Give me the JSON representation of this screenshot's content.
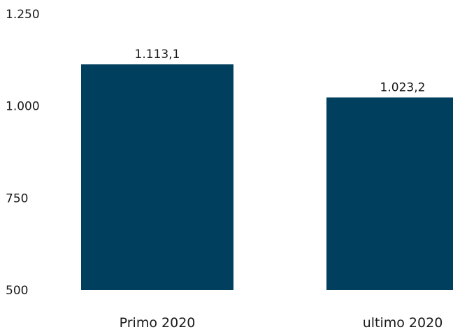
{
  "chart_data": {
    "type": "bar",
    "categories": [
      "Primo 2020",
      "ultimo 2020"
    ],
    "values": [
      1113.1,
      1023.2
    ],
    "data_labels": [
      "1.113,1",
      "1.023,2"
    ],
    "yticks": [
      500,
      750,
      1000,
      1250
    ],
    "ytick_labels": [
      "500",
      "750",
      "1.000",
      "1.250"
    ],
    "ylim": [
      500,
      1250
    ],
    "title": "",
    "xlabel": "",
    "ylabel": "",
    "grid": false,
    "legend": "none",
    "bar_color": "#00405e"
  }
}
